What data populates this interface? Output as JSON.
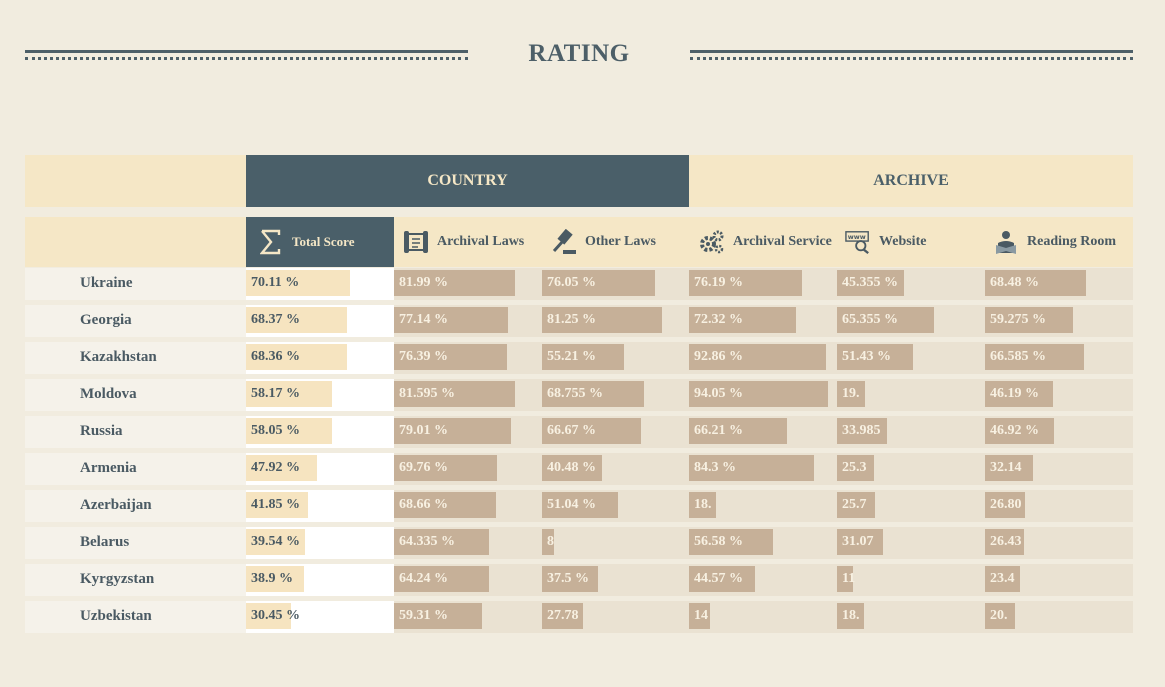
{
  "title": "RATING",
  "groups": {
    "country": "COUNTRY",
    "archive": "ARCHIVE"
  },
  "columns": {
    "total": "Total Score",
    "archival_laws": "Archival Laws",
    "other_laws": "Other Laws",
    "archival_service": "Archival Service",
    "website": "Website",
    "reading_room": "Reading Room"
  },
  "icons": {
    "total": "sigma-icon",
    "archival_laws": "scroll-icon",
    "other_laws": "gavel-icon",
    "archival_service": "gears-icon",
    "website": "www-search-icon",
    "reading_room": "reader-icon"
  },
  "colors": {
    "dark": "#4a5f69",
    "cream": "#f5e7c6",
    "bar_brown": "#c6b098",
    "cell_bg": "#eae2d2",
    "total_bar": "#f6e4c0"
  },
  "chart_data": {
    "type": "table",
    "title": "RATING",
    "columns": [
      "Total Score",
      "Archival Laws",
      "Other Laws",
      "Archival Service",
      "Website",
      "Reading Room"
    ],
    "rows": [
      {
        "country": "Ukraine",
        "labels": [
          "70.11 %",
          "81.99 %",
          "76.05 %",
          "76.19 %",
          "45.355 %",
          "68.48 %"
        ],
        "values": [
          70.11,
          81.99,
          76.05,
          76.19,
          45.355,
          68.48
        ]
      },
      {
        "country": "Georgia",
        "labels": [
          "68.37 %",
          "77.14 %",
          "81.25 %",
          "72.32 %",
          "65.355 %",
          "59.275 %"
        ],
        "values": [
          68.37,
          77.14,
          81.25,
          72.32,
          65.355,
          59.275
        ]
      },
      {
        "country": "Kazakhstan",
        "labels": [
          "68.36 %",
          "76.39 %",
          "55.21 %",
          "92.86 %",
          "51.43 %",
          "66.585 %"
        ],
        "values": [
          68.36,
          76.39,
          55.21,
          92.86,
          51.43,
          66.585
        ]
      },
      {
        "country": "Moldova",
        "labels": [
          "58.17 %",
          "81.595 %",
          "68.755 %",
          "94.05 %",
          "19.",
          "46.19 %"
        ],
        "values": [
          58.17,
          81.595,
          68.755,
          94.05,
          19.0,
          46.19
        ]
      },
      {
        "country": "Russia",
        "labels": [
          "58.05 %",
          "79.01 %",
          "66.67 %",
          "66.21 %",
          "33.985",
          "46.92 %"
        ],
        "values": [
          58.05,
          79.01,
          66.67,
          66.21,
          33.985,
          46.92
        ]
      },
      {
        "country": "Armenia",
        "labels": [
          "47.92 %",
          "69.76 %",
          "40.48 %",
          "84.3 %",
          "25.3",
          "32.14"
        ],
        "values": [
          47.92,
          69.76,
          40.48,
          84.3,
          25.3,
          32.14
        ]
      },
      {
        "country": "Azerbaijan",
        "labels": [
          "41.85 %",
          "68.66 %",
          "51.04 %",
          "18.",
          "25.7",
          "26.80"
        ],
        "values": [
          41.85,
          68.66,
          51.04,
          18.0,
          25.7,
          26.8
        ]
      },
      {
        "country": "Belarus",
        "labels": [
          "39.54 %",
          "64.335 %",
          "8",
          "56.58 %",
          "31.07",
          "26.43"
        ],
        "values": [
          39.54,
          64.335,
          8.0,
          56.58,
          31.07,
          26.43
        ]
      },
      {
        "country": "Kyrgyzstan",
        "labels": [
          "38.9 %",
          "64.24 %",
          "37.5 %",
          "44.57 %",
          "11",
          "23.4"
        ],
        "values": [
          38.9,
          64.24,
          37.5,
          44.57,
          11.0,
          23.4
        ]
      },
      {
        "country": "Uzbekistan",
        "labels": [
          "30.45 %",
          "59.31 %",
          "27.78",
          "14",
          "18.",
          "20."
        ],
        "values": [
          30.45,
          59.31,
          27.78,
          14.0,
          18.0,
          20.0
        ]
      }
    ],
    "value_range": [
      0,
      100
    ]
  }
}
